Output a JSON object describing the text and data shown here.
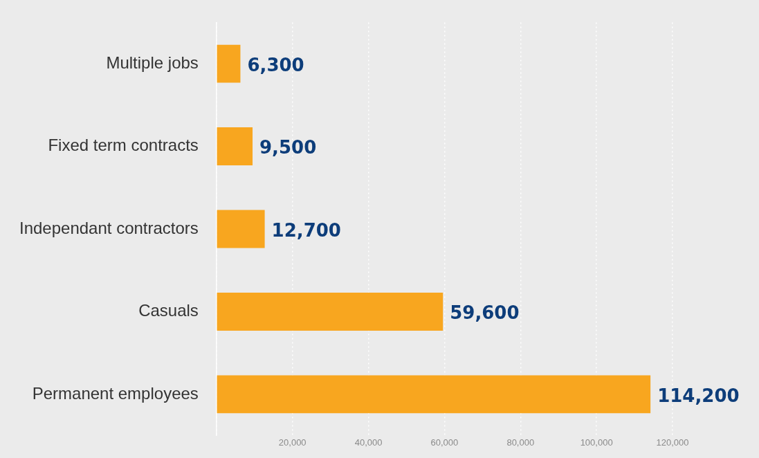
{
  "chart_data": {
    "type": "bar",
    "orientation": "horizontal",
    "categories": [
      "Multiple jobs",
      "Fixed term contracts",
      "Independant contractors",
      "Casuals",
      "Permanent employees"
    ],
    "values": [
      6300,
      9500,
      12700,
      59600,
      114200
    ],
    "value_labels": [
      "6,300",
      "9,500",
      "12,700",
      "59,600",
      "114,200"
    ],
    "color": "#f8a61f",
    "xlim": [
      0,
      120000
    ],
    "xticks": [
      {
        "value": 0,
        "label": null
      },
      {
        "value": 20000,
        "label": "20,000"
      },
      {
        "value": 40000,
        "label": "40,000"
      },
      {
        "value": 60000,
        "label": "60,000"
      },
      {
        "value": 80000,
        "label": "80,000"
      },
      {
        "value": 100000,
        "label": "100,000"
      },
      {
        "value": 120000,
        "label": "120,000"
      }
    ],
    "grid": "x",
    "legend": false
  }
}
